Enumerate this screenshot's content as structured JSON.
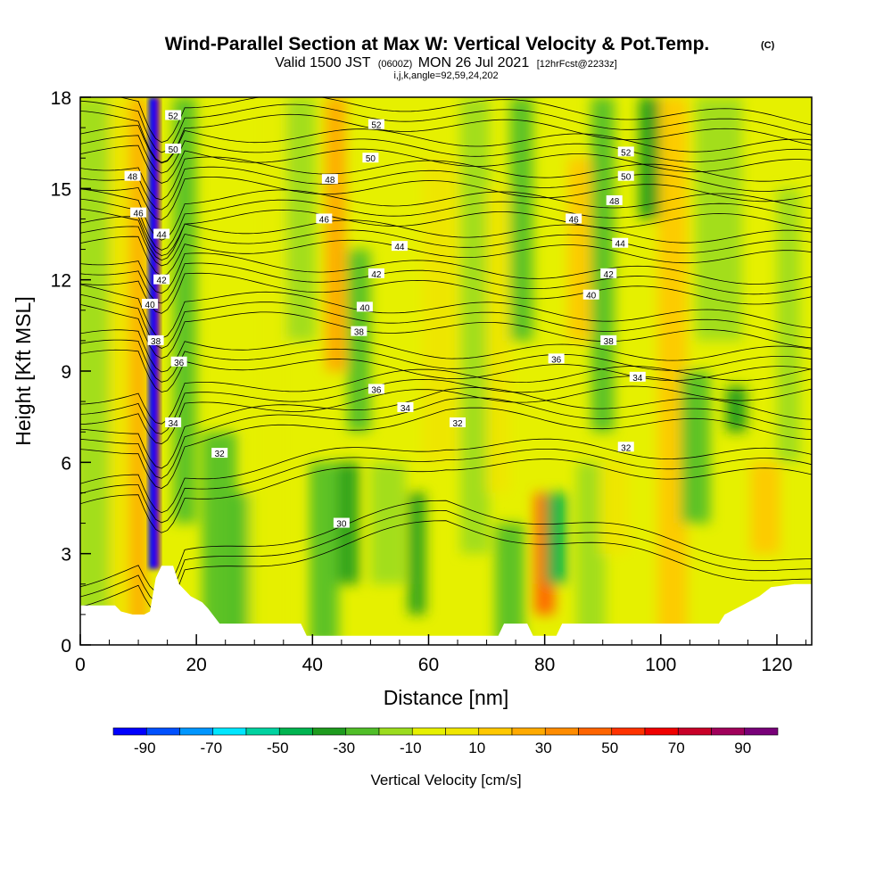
{
  "header": {
    "title": "Wind-Parallel Section at Max W: Vertical Velocity & Pot.Temp.",
    "copyright": "(C)",
    "valid_prefix": "Valid 1500 JST",
    "valid_utc": "(0600Z)",
    "valid_date": "MON 26 Jul 2021",
    "forecast": "[12hrFcst@2233z]",
    "indices": "i,j,k,angle=92,59,24,202"
  },
  "chart_data": {
    "type": "heatmap",
    "xlabel": "Distance [nm]",
    "ylabel": "Height [Kft MSL]",
    "xlim": [
      0,
      126
    ],
    "ylim": [
      0,
      18
    ],
    "x_ticks": [
      0,
      20,
      40,
      60,
      80,
      100,
      120
    ],
    "y_ticks": [
      0,
      3,
      6,
      9,
      12,
      15,
      18
    ],
    "colorbar": {
      "label": "Vertical Velocity [cm/s]",
      "levels": [
        -90,
        -80,
        -70,
        -60,
        -50,
        -40,
        -30,
        -20,
        -10,
        0,
        10,
        20,
        30,
        40,
        50,
        60,
        70,
        80,
        90,
        100
      ],
      "tick_labels": [
        "-90",
        "-70",
        "-50",
        "-30",
        "-10",
        "10",
        "30",
        "50",
        "70",
        "90"
      ],
      "colors": [
        "#0000ff",
        "#0050ff",
        "#0096ff",
        "#00e6ff",
        "#00d2a0",
        "#00b450",
        "#1e9b1e",
        "#50be28",
        "#9bdc1e",
        "#e6f000",
        "#f0e600",
        "#ffc800",
        "#ffaa00",
        "#ff8c00",
        "#ff6400",
        "#ff3200",
        "#f00000",
        "#c80028",
        "#a0005a",
        "#780078"
      ]
    },
    "w_features": [
      {
        "x": 13.0,
        "y0": 2.5,
        "y1": 18.0,
        "w": 140,
        "desc": "updraft core"
      },
      {
        "x": 12.5,
        "y0": 2.5,
        "y1": 18.0,
        "w": -90,
        "desc": "downdraft core"
      },
      {
        "x": 44.0,
        "y0": 9.0,
        "y1": 18.0,
        "w": 30
      },
      {
        "x": 80.0,
        "y0": 1.0,
        "y1": 5.0,
        "w": 50
      },
      {
        "x": 82.0,
        "y0": 2.0,
        "y1": 5.0,
        "w": -40
      },
      {
        "x": 98.0,
        "y0": 14.0,
        "y1": 18.0,
        "w": -30
      },
      {
        "x": 113.0,
        "y0": 7.0,
        "y1": 8.5,
        "w": -30
      }
    ],
    "theta_contours": {
      "units": "",
      "levels": [
        30,
        32,
        34,
        36,
        38,
        40,
        42,
        44,
        46,
        48,
        50,
        52
      ],
      "labels": [
        {
          "text": "30",
          "x": 45,
          "y": 4.0
        },
        {
          "text": "32",
          "x": 24,
          "y": 6.3
        },
        {
          "text": "32",
          "x": 65,
          "y": 7.3
        },
        {
          "text": "32",
          "x": 94,
          "y": 6.5
        },
        {
          "text": "34",
          "x": 16,
          "y": 7.3
        },
        {
          "text": "34",
          "x": 56,
          "y": 7.8
        },
        {
          "text": "34",
          "x": 96,
          "y": 8.8
        },
        {
          "text": "36",
          "x": 17,
          "y": 9.3
        },
        {
          "text": "36",
          "x": 51,
          "y": 8.4
        },
        {
          "text": "36",
          "x": 82,
          "y": 9.4
        },
        {
          "text": "38",
          "x": 13,
          "y": 10.0
        },
        {
          "text": "38",
          "x": 48,
          "y": 10.3
        },
        {
          "text": "38",
          "x": 91,
          "y": 10.0
        },
        {
          "text": "40",
          "x": 12,
          "y": 11.2
        },
        {
          "text": "40",
          "x": 49,
          "y": 11.1
        },
        {
          "text": "40",
          "x": 88,
          "y": 11.5
        },
        {
          "text": "42",
          "x": 14,
          "y": 12.0
        },
        {
          "text": "42",
          "x": 51,
          "y": 12.2
        },
        {
          "text": "42",
          "x": 91,
          "y": 12.2
        },
        {
          "text": "44",
          "x": 14,
          "y": 13.5
        },
        {
          "text": "44",
          "x": 55,
          "y": 13.1
        },
        {
          "text": "44",
          "x": 93,
          "y": 13.2
        },
        {
          "text": "46",
          "x": 10,
          "y": 14.2
        },
        {
          "text": "46",
          "x": 42,
          "y": 14.0
        },
        {
          "text": "46",
          "x": 85,
          "y": 14.0
        },
        {
          "text": "48",
          "x": 9,
          "y": 15.4
        },
        {
          "text": "48",
          "x": 43,
          "y": 15.3
        },
        {
          "text": "48",
          "x": 92,
          "y": 14.6
        },
        {
          "text": "50",
          "x": 16,
          "y": 16.3
        },
        {
          "text": "50",
          "x": 50,
          "y": 16.0
        },
        {
          "text": "50",
          "x": 94,
          "y": 15.4
        },
        {
          "text": "52",
          "x": 16,
          "y": 17.4
        },
        {
          "text": "52",
          "x": 51,
          "y": 17.1
        },
        {
          "text": "52",
          "x": 94,
          "y": 16.2
        }
      ]
    },
    "terrain": [
      [
        0,
        1.3
      ],
      [
        3,
        1.3
      ],
      [
        6,
        1.3
      ],
      [
        7,
        1.1
      ],
      [
        9,
        1.0
      ],
      [
        11,
        1.0
      ],
      [
        12,
        1.1
      ],
      [
        13,
        2.2
      ],
      [
        14,
        2.6
      ],
      [
        16,
        2.6
      ],
      [
        17,
        2.0
      ],
      [
        19,
        1.6
      ],
      [
        21,
        1.4
      ],
      [
        22,
        1.2
      ],
      [
        24,
        0.7
      ],
      [
        30,
        0.7
      ],
      [
        38,
        0.7
      ],
      [
        39,
        0.3
      ],
      [
        60,
        0.3
      ],
      [
        64,
        0.3
      ],
      [
        72,
        0.3
      ],
      [
        73,
        0.7
      ],
      [
        77,
        0.7
      ],
      [
        78,
        0.3
      ],
      [
        82,
        0.3
      ],
      [
        83,
        0.7
      ],
      [
        93,
        0.7
      ],
      [
        96,
        0.7
      ],
      [
        100,
        0.7
      ],
      [
        110,
        0.7
      ],
      [
        111,
        1.0
      ],
      [
        114,
        1.3
      ],
      [
        117,
        1.6
      ],
      [
        119,
        1.9
      ],
      [
        123,
        2.0
      ],
      [
        126,
        2.0
      ]
    ]
  }
}
